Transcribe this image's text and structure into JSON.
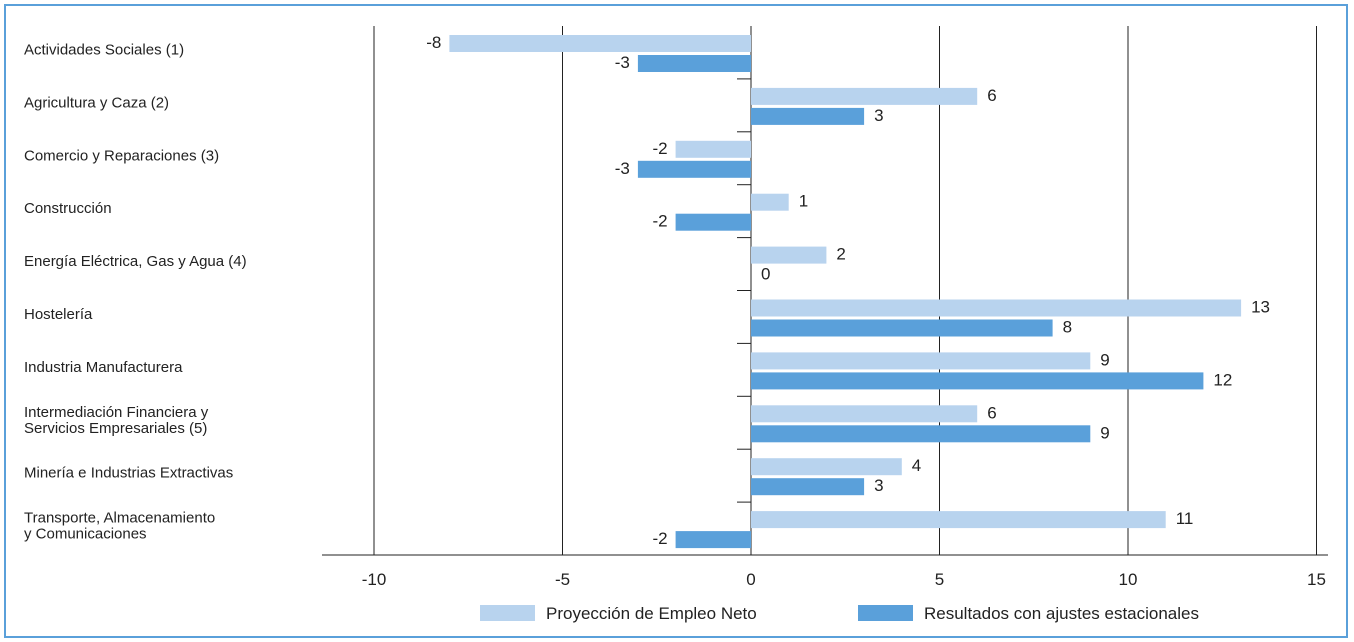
{
  "chart_data": {
    "type": "bar",
    "orientation": "horizontal",
    "categories": [
      "Actividades Sociales (1)",
      "Agricultura y Caza (2)",
      "Comercio y Reparaciones (3)",
      "Construcción",
      "Energía Eléctrica, Gas y Agua (4)",
      "Hostelería",
      "Industria Manufacturera",
      "Intermediación Financiera y\nServicios Empresariales (5)",
      "Minería e Industrias Extractivas",
      "Transporte, Almacenamiento\ny Comunicaciones"
    ],
    "series": [
      {
        "name": "Proyección de Empleo Neto",
        "color": "#b8d3ee",
        "values": [
          -8,
          6,
          -2,
          1,
          2,
          13,
          9,
          6,
          4,
          11
        ],
        "labels": [
          "-8",
          "6",
          "-2",
          "1",
          "2",
          "13",
          "9",
          "6",
          "4",
          "11"
        ]
      },
      {
        "name": "Resultados con ajustes estacionales",
        "color": "#5aa0da",
        "values": [
          -3,
          3,
          -3,
          -2,
          0,
          8,
          12,
          9,
          3,
          -2
        ],
        "labels": [
          "-3",
          "3",
          "-3",
          "-2",
          "0",
          "8",
          "12",
          "9",
          "3",
          "-2"
        ]
      }
    ],
    "xlim": [
      -10,
      15
    ],
    "xticks": [
      "-10",
      "-5",
      "0",
      "5",
      "10",
      "15"
    ],
    "grid": true,
    "legend": "bottom",
    "title": "",
    "xlabel": "",
    "ylabel": ""
  }
}
